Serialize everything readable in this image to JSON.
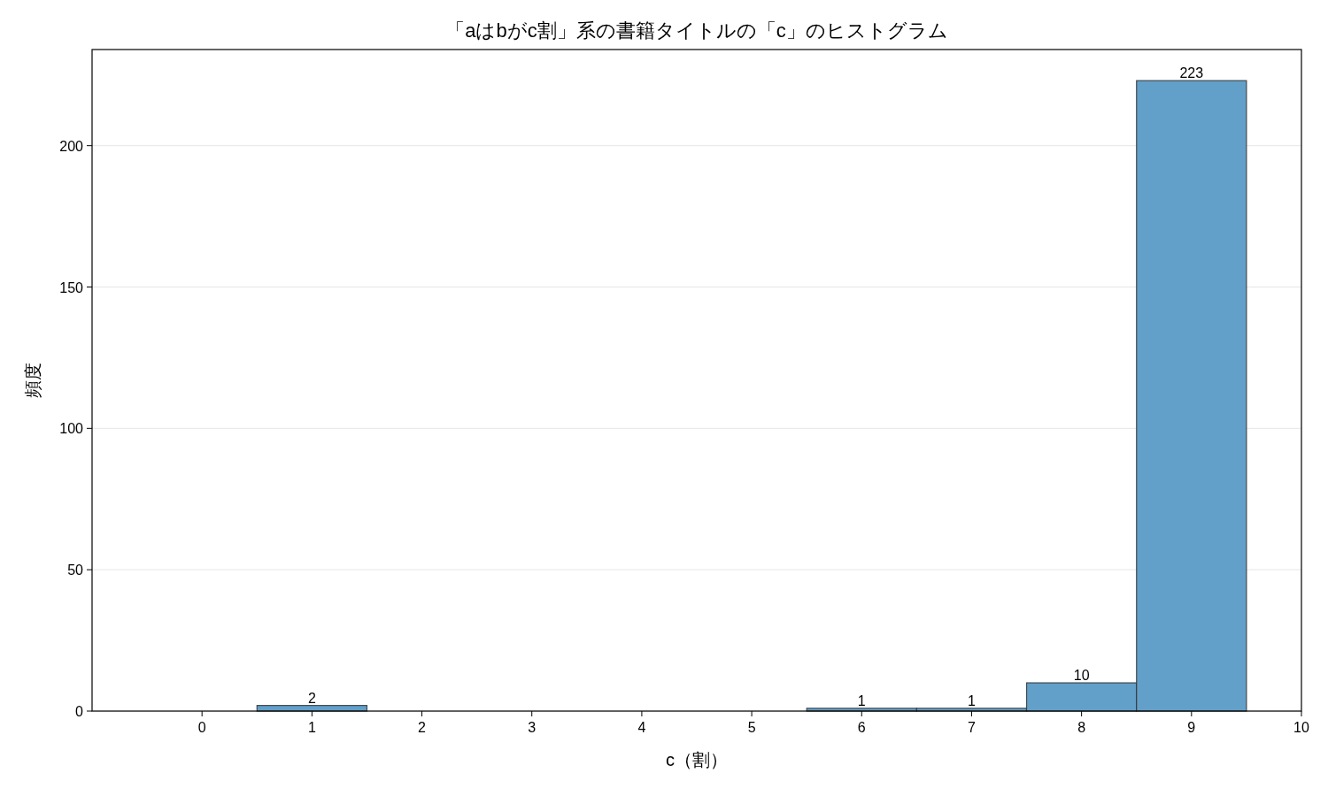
{
  "chart_data": {
    "type": "histogram",
    "title": "「aはbがc割」系の書籍タイトルの「c」のヒストグラム",
    "xlabel": "c（割）",
    "ylabel": "頻度",
    "bins": [
      -0.5,
      0.5,
      1.5,
      2.5,
      3.5,
      4.5,
      5.5,
      6.5,
      7.5,
      8.5,
      9.5
    ],
    "values": [
      0,
      2,
      0,
      0,
      0,
      0,
      1,
      1,
      10,
      223
    ],
    "value_labels": [
      null,
      "2",
      null,
      null,
      null,
      null,
      "1",
      "1",
      "10",
      "223"
    ],
    "color": "#62a0ca",
    "xlim": [
      -1,
      10
    ],
    "xticks": [
      0,
      1,
      2,
      3,
      4,
      5,
      6,
      7,
      8,
      9,
      10
    ],
    "ylim": [
      0,
      234
    ],
    "yticks": [
      0,
      50,
      100,
      150,
      200
    ],
    "grid": "y"
  }
}
